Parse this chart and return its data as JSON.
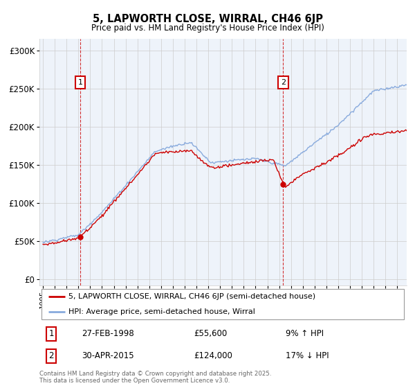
{
  "title": "5, LAPWORTH CLOSE, WIRRAL, CH46 6JP",
  "subtitle": "Price paid vs. HM Land Registry's House Price Index (HPI)",
  "ylabel_ticks": [
    "£0",
    "£50K",
    "£100K",
    "£150K",
    "£200K",
    "£250K",
    "£300K"
  ],
  "ytick_vals": [
    0,
    50000,
    100000,
    150000,
    200000,
    250000,
    300000
  ],
  "ylim": [
    -8000,
    315000
  ],
  "xlim_start": 1994.7,
  "xlim_end": 2025.8,
  "sale1_year": 1998.15,
  "sale1_price": 55600,
  "sale1_label": "1",
  "sale1_date": "27-FEB-1998",
  "sale1_pct": "9% ↑ HPI",
  "sale2_year": 2015.33,
  "sale2_price": 124000,
  "sale2_label": "2",
  "sale2_date": "30-APR-2015",
  "sale2_pct": "17% ↓ HPI",
  "legend_line1": "5, LAPWORTH CLOSE, WIRRAL, CH46 6JP (semi-detached house)",
  "legend_line2": "HPI: Average price, semi-detached house, Wirral",
  "footer": "Contains HM Land Registry data © Crown copyright and database right 2025.\nThis data is licensed under the Open Government Licence v3.0.",
  "price_color": "#cc0000",
  "hpi_color": "#88aadd",
  "grid_color": "#cccccc",
  "bg_color": "#eef3fa",
  "annotation_box_color": "#cc0000",
  "dashed_line_color": "#cc0000"
}
